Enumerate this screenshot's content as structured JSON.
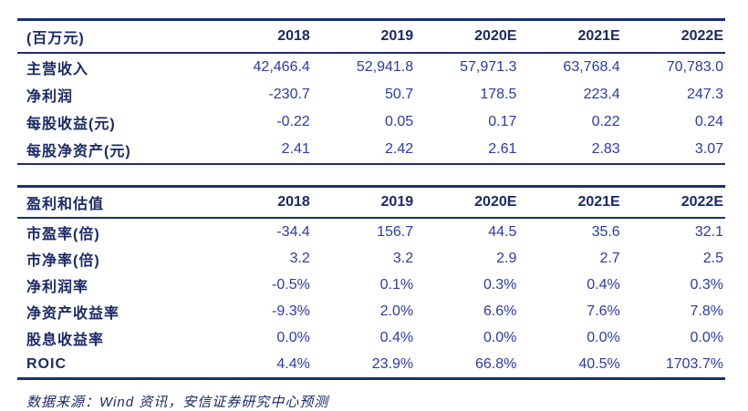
{
  "colors": {
    "label_navy": "#1a2a66",
    "value_blue": "#2b3ba8",
    "rule_line": "#1b2f72",
    "background": "#ffffff"
  },
  "table1": {
    "unit_header": "(百万元)",
    "columns": [
      "2018",
      "2019",
      "2020E",
      "2021E",
      "2022E"
    ],
    "rows": [
      {
        "label": "主营收入",
        "values": [
          "42,466.4",
          "52,941.8",
          "57,971.3",
          "63,768.4",
          "70,783.0"
        ]
      },
      {
        "label": "净利润",
        "values": [
          "-230.7",
          "50.7",
          "178.5",
          "223.4",
          "247.3"
        ]
      },
      {
        "label": "每股收益(元)",
        "values": [
          "-0.22",
          "0.05",
          "0.17",
          "0.22",
          "0.24"
        ]
      },
      {
        "label": "每股净资产(元)",
        "values": [
          "2.41",
          "2.42",
          "2.61",
          "2.83",
          "3.07"
        ]
      }
    ]
  },
  "table2": {
    "header": "盈利和估值",
    "columns": [
      "2018",
      "2019",
      "2020E",
      "2021E",
      "2022E"
    ],
    "rows": [
      {
        "label": "市盈率(倍)",
        "values": [
          "-34.4",
          "156.7",
          "44.5",
          "35.6",
          "32.1"
        ]
      },
      {
        "label": "市净率(倍)",
        "values": [
          "3.2",
          "3.2",
          "2.9",
          "2.7",
          "2.5"
        ]
      },
      {
        "label": "净利润率",
        "values": [
          "-0.5%",
          "0.1%",
          "0.3%",
          "0.4%",
          "0.3%"
        ]
      },
      {
        "label": "净资产收益率",
        "values": [
          "-9.3%",
          "2.0%",
          "6.6%",
          "7.6%",
          "7.8%"
        ]
      },
      {
        "label": "股息收益率",
        "values": [
          "0.0%",
          "0.4%",
          "0.0%",
          "0.0%",
          "0.0%"
        ]
      },
      {
        "label": "ROIC",
        "values": [
          "4.4%",
          "23.9%",
          "66.8%",
          "40.5%",
          "1703.7%"
        ]
      }
    ]
  },
  "footer": {
    "source": "数据来源：Wind 资讯，安信证券研究中心预测"
  }
}
